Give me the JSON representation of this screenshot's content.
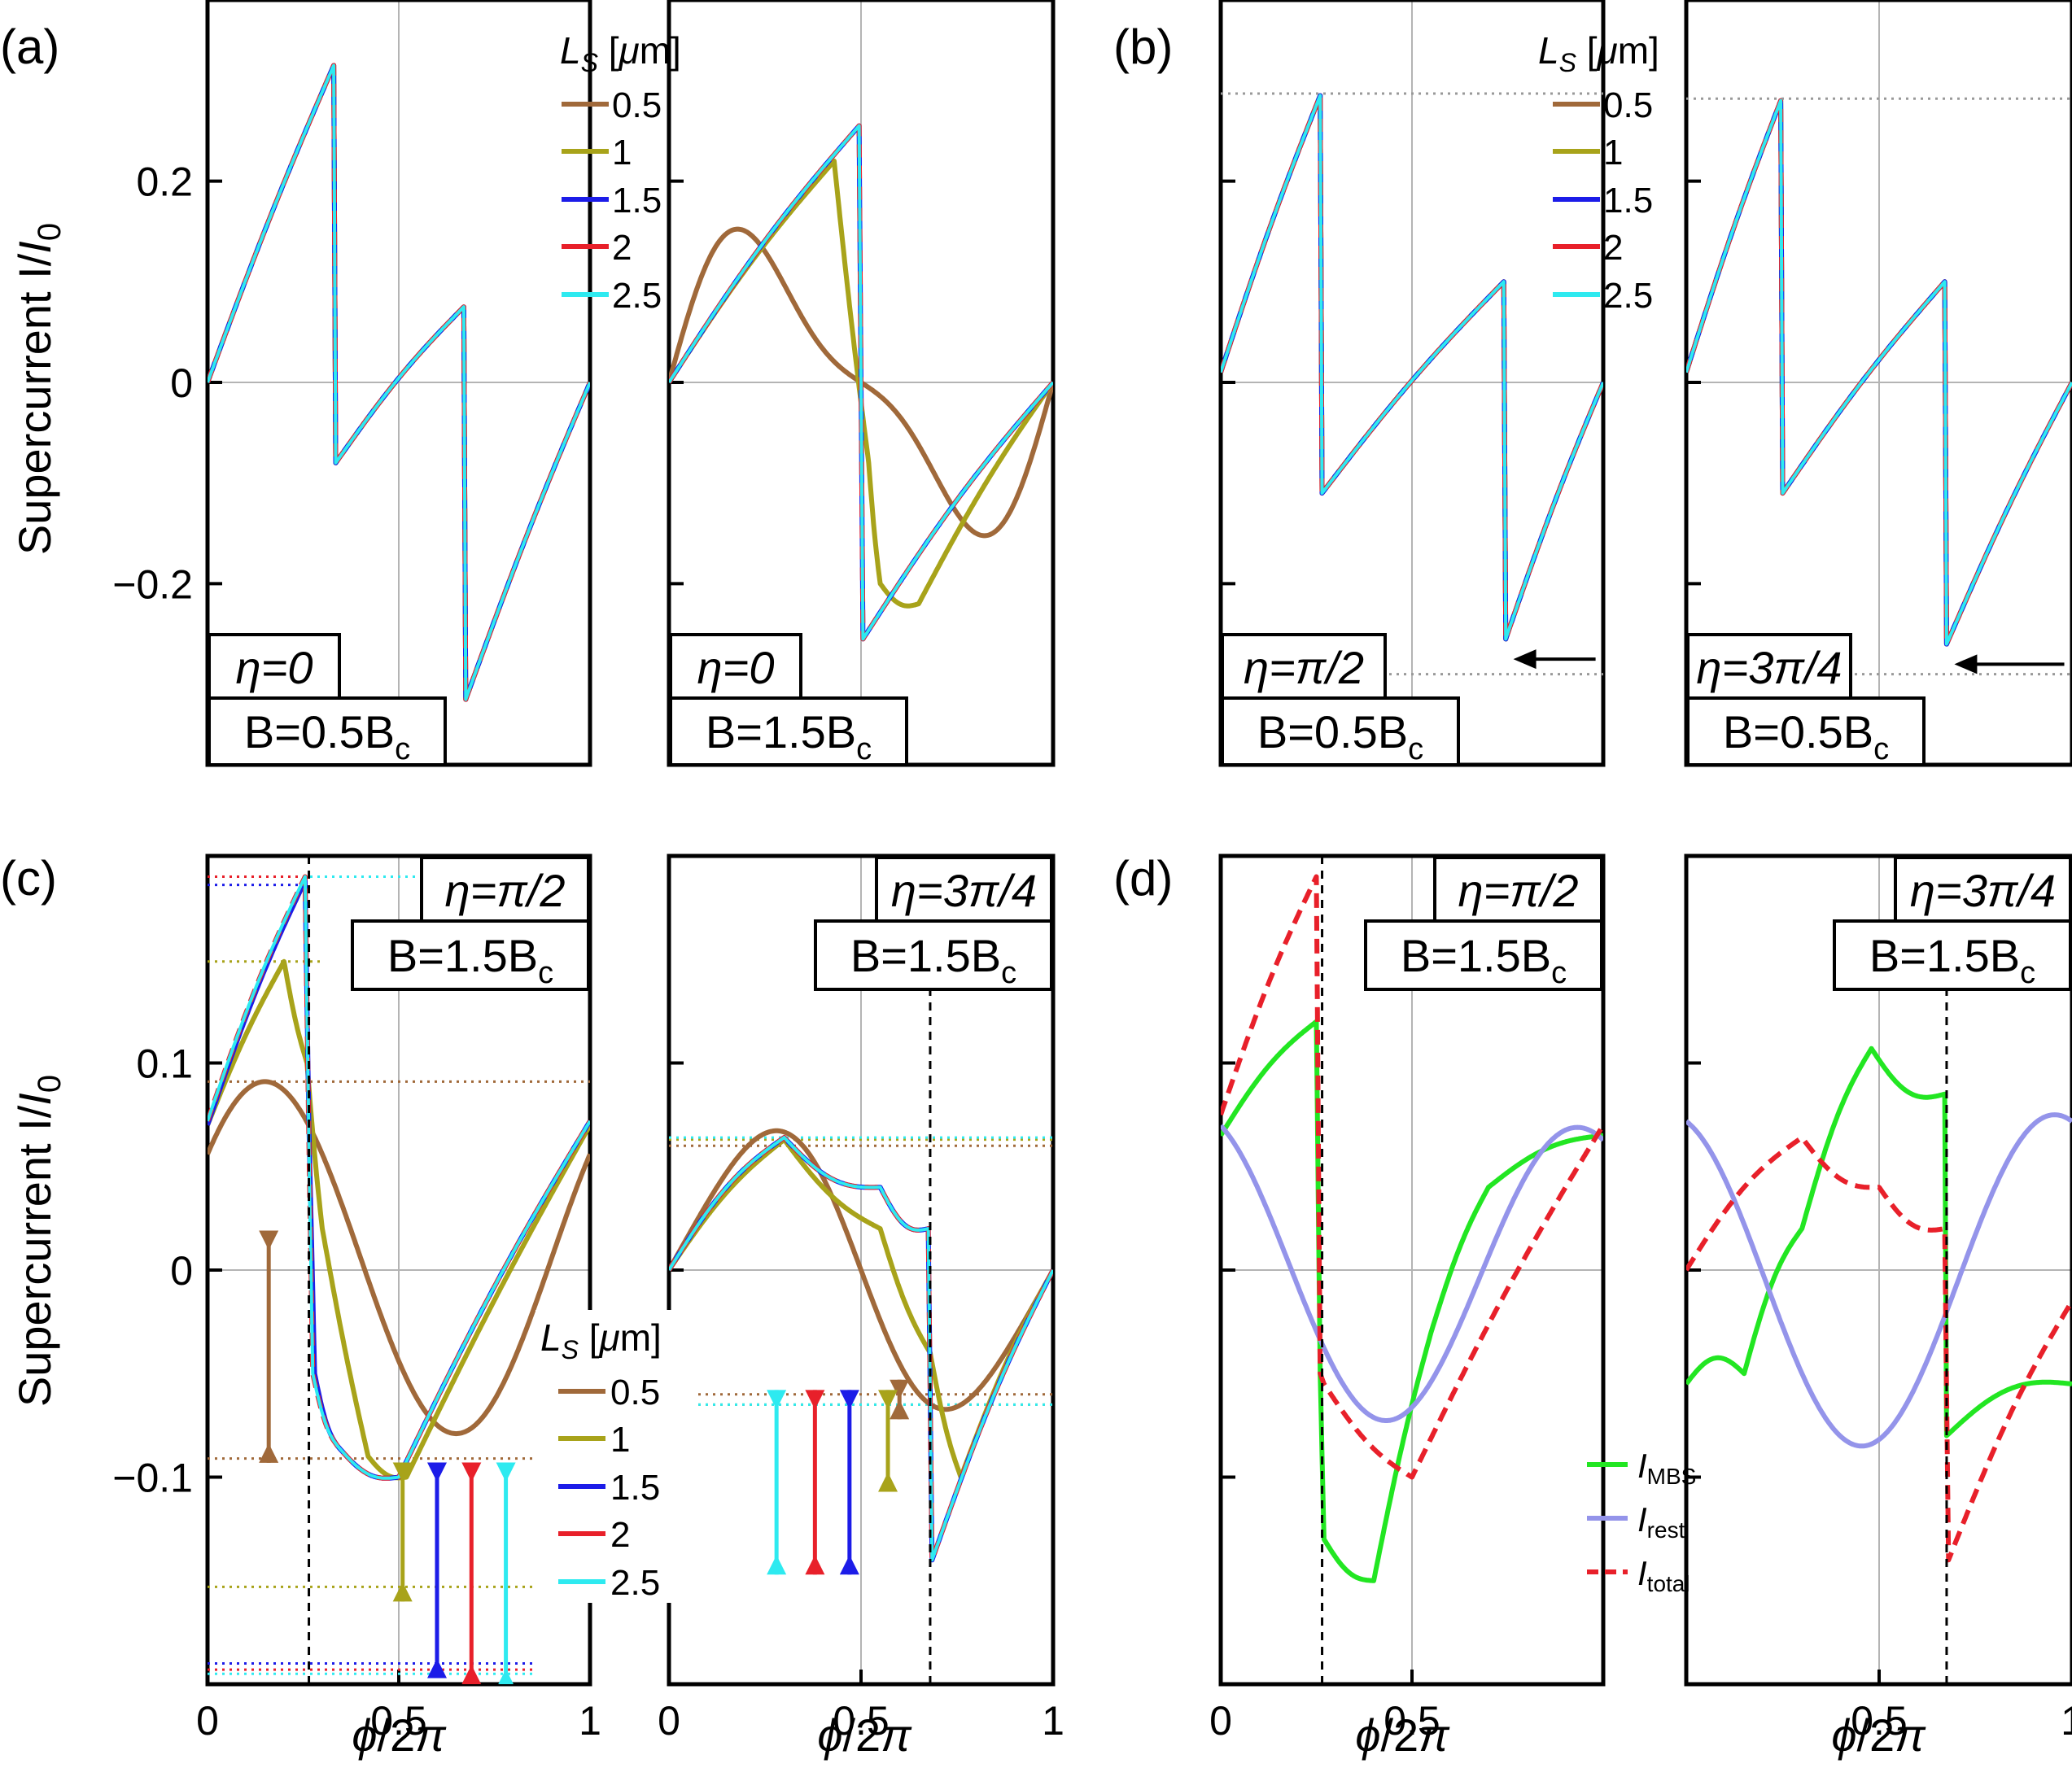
{
  "figure": {
    "panel_letters": [
      "(a)",
      "(b)",
      "(c)",
      "(d)"
    ],
    "ylabel_text": "Supercurrent I/",
    "ylabel_i": "I",
    "ylabel_sub": "0",
    "xlabel_phi": "ϕ",
    "xlabel_rest": "/2",
    "xlabel_pi": "π"
  },
  "legend_ls": {
    "title_L": "L",
    "title_sub": "S",
    "title_unit_open": " [",
    "title_mu": "μ",
    "title_unit_close": "m]",
    "entries": [
      "0.5",
      "1",
      "1.5",
      "2",
      "2.5"
    ],
    "colors": [
      "#A0693A",
      "#A8A31A",
      "#1C1CE8",
      "#E8202A",
      "#2EEAF0"
    ]
  },
  "legend_d": {
    "entries": [
      {
        "main": "I",
        "sub": "MBS",
        "color": "#22E622",
        "dash": false
      },
      {
        "main": "I",
        "sub": "rest",
        "color": "#9494EA",
        "dash": false
      },
      {
        "main": "I",
        "sub": "total",
        "color": "#E8202A",
        "dash": true
      }
    ]
  },
  "chart_data": [
    {
      "id": "a1",
      "type": "line",
      "panel": "(a)",
      "eta": "η=0",
      "field": "B=0.5B",
      "field_sub": "c",
      "ylim": [
        -0.38,
        0.38
      ],
      "yticks": [
        "0.2",
        "0",
        "−0.2"
      ],
      "ytick_values": [
        0.2,
        0,
        -0.2
      ],
      "xlim": [
        0,
        1
      ],
      "xticks": [],
      "xtick_values": [
        0,
        0.5,
        1
      ],
      "series_note": "all LS curves overlap",
      "key_points": {
        "x": [
          0,
          0.33,
          0.335,
          0.67,
          0.675,
          1
        ],
        "y": [
          0,
          0.315,
          -0.08,
          0.075,
          -0.315,
          0
        ]
      }
    },
    {
      "id": "a2",
      "type": "line",
      "panel": "(a)",
      "eta": "η=0",
      "field": "B=1.5B",
      "field_sub": "c",
      "ylim": [
        -0.38,
        0.38
      ],
      "yticks": [],
      "ytick_values": [
        0.2,
        0,
        -0.2
      ],
      "xlim": [
        0,
        1
      ],
      "xticks": [],
      "xtick_values": [
        0,
        0.5,
        1
      ],
      "peaks": {
        "LS_0.5": 0.145,
        "LS_1": 0.22,
        "LS_1.5_to_2.5": 0.255
      }
    },
    {
      "id": "b1",
      "type": "line",
      "panel": "(b)",
      "eta": "η=π/2",
      "field": "B=0.5B",
      "field_sub": "c",
      "ylim": [
        -0.38,
        0.38
      ],
      "yticks": [],
      "ytick_values": [
        0.2,
        0,
        -0.2
      ],
      "xlim": [
        0,
        1
      ],
      "xticks": [],
      "xtick_values": [
        0,
        0.5,
        1
      ],
      "key_points": {
        "x": [
          0,
          0.26,
          0.265,
          0.74,
          0.745,
          1
        ],
        "y": [
          0.01,
          0.285,
          -0.11,
          0.1,
          -0.255,
          0
        ]
      }
    },
    {
      "id": "b2",
      "type": "line",
      "panel": "(b)",
      "eta": "η=3π/4",
      "field": "B=0.5B",
      "field_sub": "c",
      "ylim": [
        -0.38,
        0.38
      ],
      "yticks": [],
      "ytick_values": [
        0.2,
        0,
        -0.2
      ],
      "xlim": [
        0,
        1
      ],
      "xticks": [],
      "xtick_values": [
        0,
        0.5,
        1
      ],
      "key_points": {
        "x": [
          0,
          0.245,
          0.25,
          0.67,
          0.675,
          1
        ],
        "y": [
          0.01,
          0.28,
          -0.11,
          0.1,
          -0.26,
          0
        ]
      }
    },
    {
      "id": "c1",
      "type": "line",
      "panel": "(c)",
      "eta": "η=π/2",
      "field": "B=1.5B",
      "field_sub": "c",
      "ylim": [
        -0.2,
        0.2
      ],
      "yticks": [
        "0.1",
        "0",
        "−0.1"
      ],
      "ytick_values": [
        0.1,
        0,
        -0.1
      ],
      "xlim": [
        0,
        1
      ],
      "xticks": [
        "0",
        "0.5",
        "1"
      ],
      "xtick_values": [
        0,
        0.5,
        1
      ],
      "maxima": [
        0.091,
        0.149,
        0.186,
        0.19,
        0.19
      ],
      "minima": [
        -0.091,
        -0.153,
        -0.19,
        -0.193,
        -0.195
      ]
    },
    {
      "id": "c2",
      "type": "line",
      "panel": "(c)",
      "eta": "η=3π/4",
      "field": "B=1.5B",
      "field_sub": "c",
      "ylim": [
        -0.2,
        0.2
      ],
      "yticks": [],
      "ytick_values": [
        0.1,
        0,
        -0.1
      ],
      "xlim": [
        0,
        1
      ],
      "xticks": [
        "0",
        "0.5",
        "1"
      ],
      "xtick_values": [
        0,
        0.5,
        1
      ],
      "maxima": [
        0.06,
        0.063,
        0.064,
        0.064,
        0.065
      ],
      "minima": [
        -0.06,
        -0.065,
        -0.065,
        -0.065,
        -0.065
      ]
    },
    {
      "id": "d1",
      "type": "line",
      "panel": "(d)",
      "eta": "η=π/2",
      "field": "B=1.5B",
      "field_sub": "c",
      "ylim": [
        -0.2,
        0.2
      ],
      "yticks": [],
      "ytick_values": [
        0.1,
        0,
        -0.1
      ],
      "xlim": [
        0,
        1
      ],
      "xticks": [
        "0",
        "0.5"
      ],
      "xtick_values": [
        0,
        0.5,
        1
      ],
      "series": [
        "I_MBS",
        "I_rest",
        "I_total"
      ],
      "peaks": {
        "I_MBS": 0.12,
        "I_rest": 0.076,
        "I_total": 0.19
      }
    },
    {
      "id": "d2",
      "type": "line",
      "panel": "(d)",
      "eta": "η=3π/4",
      "field": "B=1.5B",
      "field_sub": "c",
      "ylim": [
        -0.2,
        0.2
      ],
      "yticks": [],
      "ytick_values": [
        0.1,
        0,
        -0.1
      ],
      "xlim": [
        0,
        1
      ],
      "xticks": [
        "0.5",
        "1"
      ],
      "xtick_values": [
        0,
        0.5,
        1
      ],
      "series": [
        "I_MBS",
        "I_rest",
        "I_total"
      ],
      "peaks": {
        "I_MBS": 0.107,
        "I_rest": 0.093,
        "I_total": 0.064
      }
    }
  ]
}
